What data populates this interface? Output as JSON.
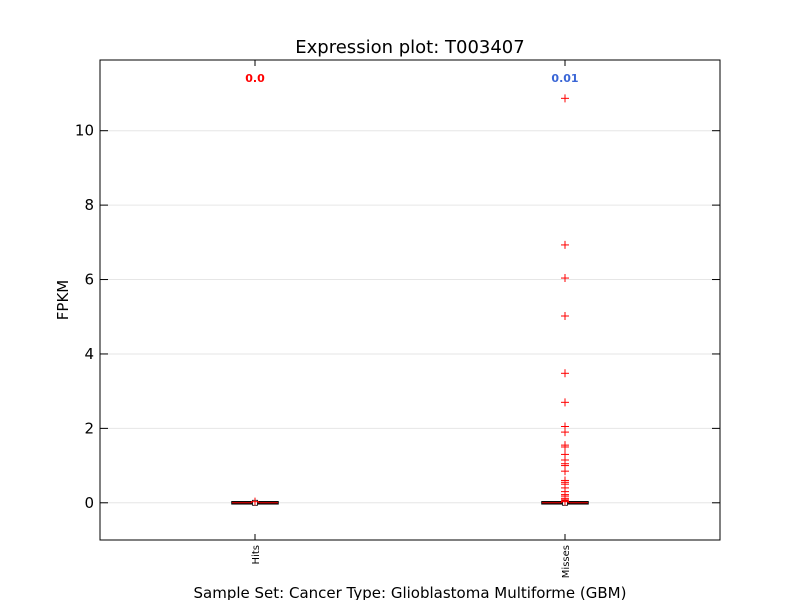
{
  "chart_data": {
    "type": "box",
    "title": "Expression plot: T003407",
    "xlabel": "Sample Set: Cancer Type: Glioblastoma Multiforme (GBM)",
    "ylabel": "FPKM",
    "ylim": [
      -1,
      11.9
    ],
    "yticks": [
      0,
      2,
      4,
      6,
      8,
      10
    ],
    "ytick_labels": [
      "0",
      "2",
      "4",
      "6",
      "8",
      "10"
    ],
    "grid": true,
    "categories": [
      "Hits",
      "Misses"
    ],
    "series": [
      {
        "category": "Hits",
        "median": 0.0,
        "q1": 0.0,
        "q3": 0.0,
        "whisker_low": 0.0,
        "whisker_high": 0.0,
        "annotation": "0.0",
        "annotation_color": "#ff0000",
        "outliers": [
          0.03
        ]
      },
      {
        "category": "Misses",
        "median": 0.0,
        "q1": 0.0,
        "q3": 0.0,
        "whisker_low": 0.0,
        "whisker_high": 0.0,
        "annotation": "0.01",
        "annotation_color": "#3a66d6",
        "outliers": [
          10.87,
          6.93,
          6.04,
          5.02,
          3.48,
          2.7,
          2.05,
          1.9,
          1.55,
          1.5,
          1.3,
          1.15,
          1.05,
          1.0,
          0.85,
          0.6,
          0.55,
          0.5,
          0.4,
          0.3,
          0.22,
          0.18,
          0.12,
          0.08,
          0.05,
          0.03
        ]
      }
    ],
    "colors": {
      "outlier": "#ff0000",
      "median": "#ff0000",
      "box": "#000000",
      "grid": "#e6e6e6"
    }
  }
}
